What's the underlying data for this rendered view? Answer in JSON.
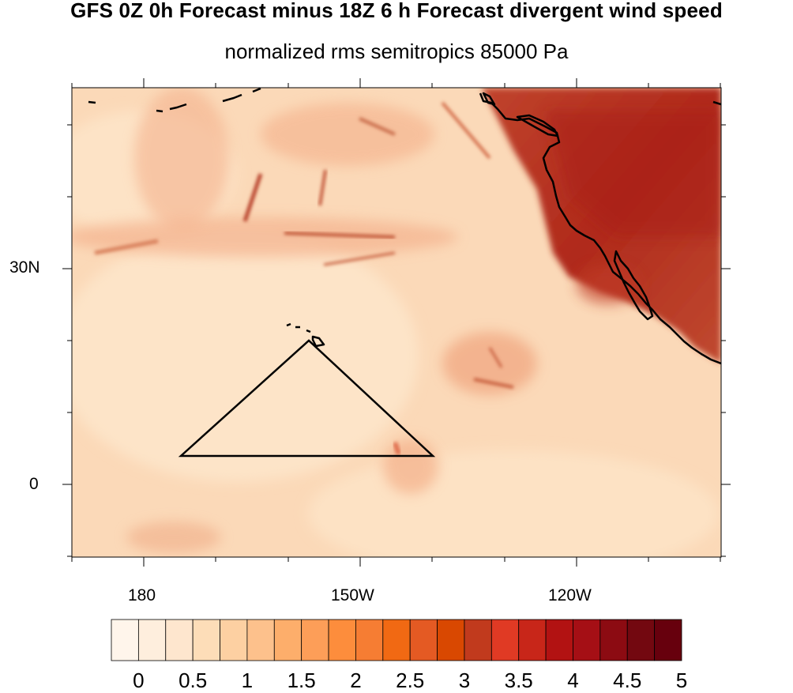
{
  "title": "GFS 0Z 0h Forecast minus 18Z 6 h Forecast divergent wind speed",
  "subtitle": "normalized rms semitropics 85000 Pa",
  "axes": {
    "lat_labels": [
      "30N",
      "0"
    ],
    "lon_labels": [
      "180",
      "150W",
      "120W"
    ]
  },
  "colorbar": {
    "labels": [
      "0",
      "0.5",
      "1",
      "1.5",
      "2",
      "2.5",
      "3",
      "3.5",
      "4",
      "4.5",
      "5"
    ],
    "colors": [
      "#fff5eb",
      "#feeedd",
      "#fee6ce",
      "#fdddb8",
      "#fdd0a2",
      "#fdc18c",
      "#fdae6b",
      "#fd9e58",
      "#fd8d3c",
      "#f67d33",
      "#f16913",
      "#e45a23",
      "#d94801",
      "#c13a1d",
      "#e03a24",
      "#c82619",
      "#b21212",
      "#a50f15",
      "#8c0b12",
      "#730810",
      "#67000d"
    ]
  },
  "map": {
    "region": "Pacific semitropics",
    "colormap": "sequential orange-red",
    "coastlines": true,
    "triangle_box": true
  }
}
